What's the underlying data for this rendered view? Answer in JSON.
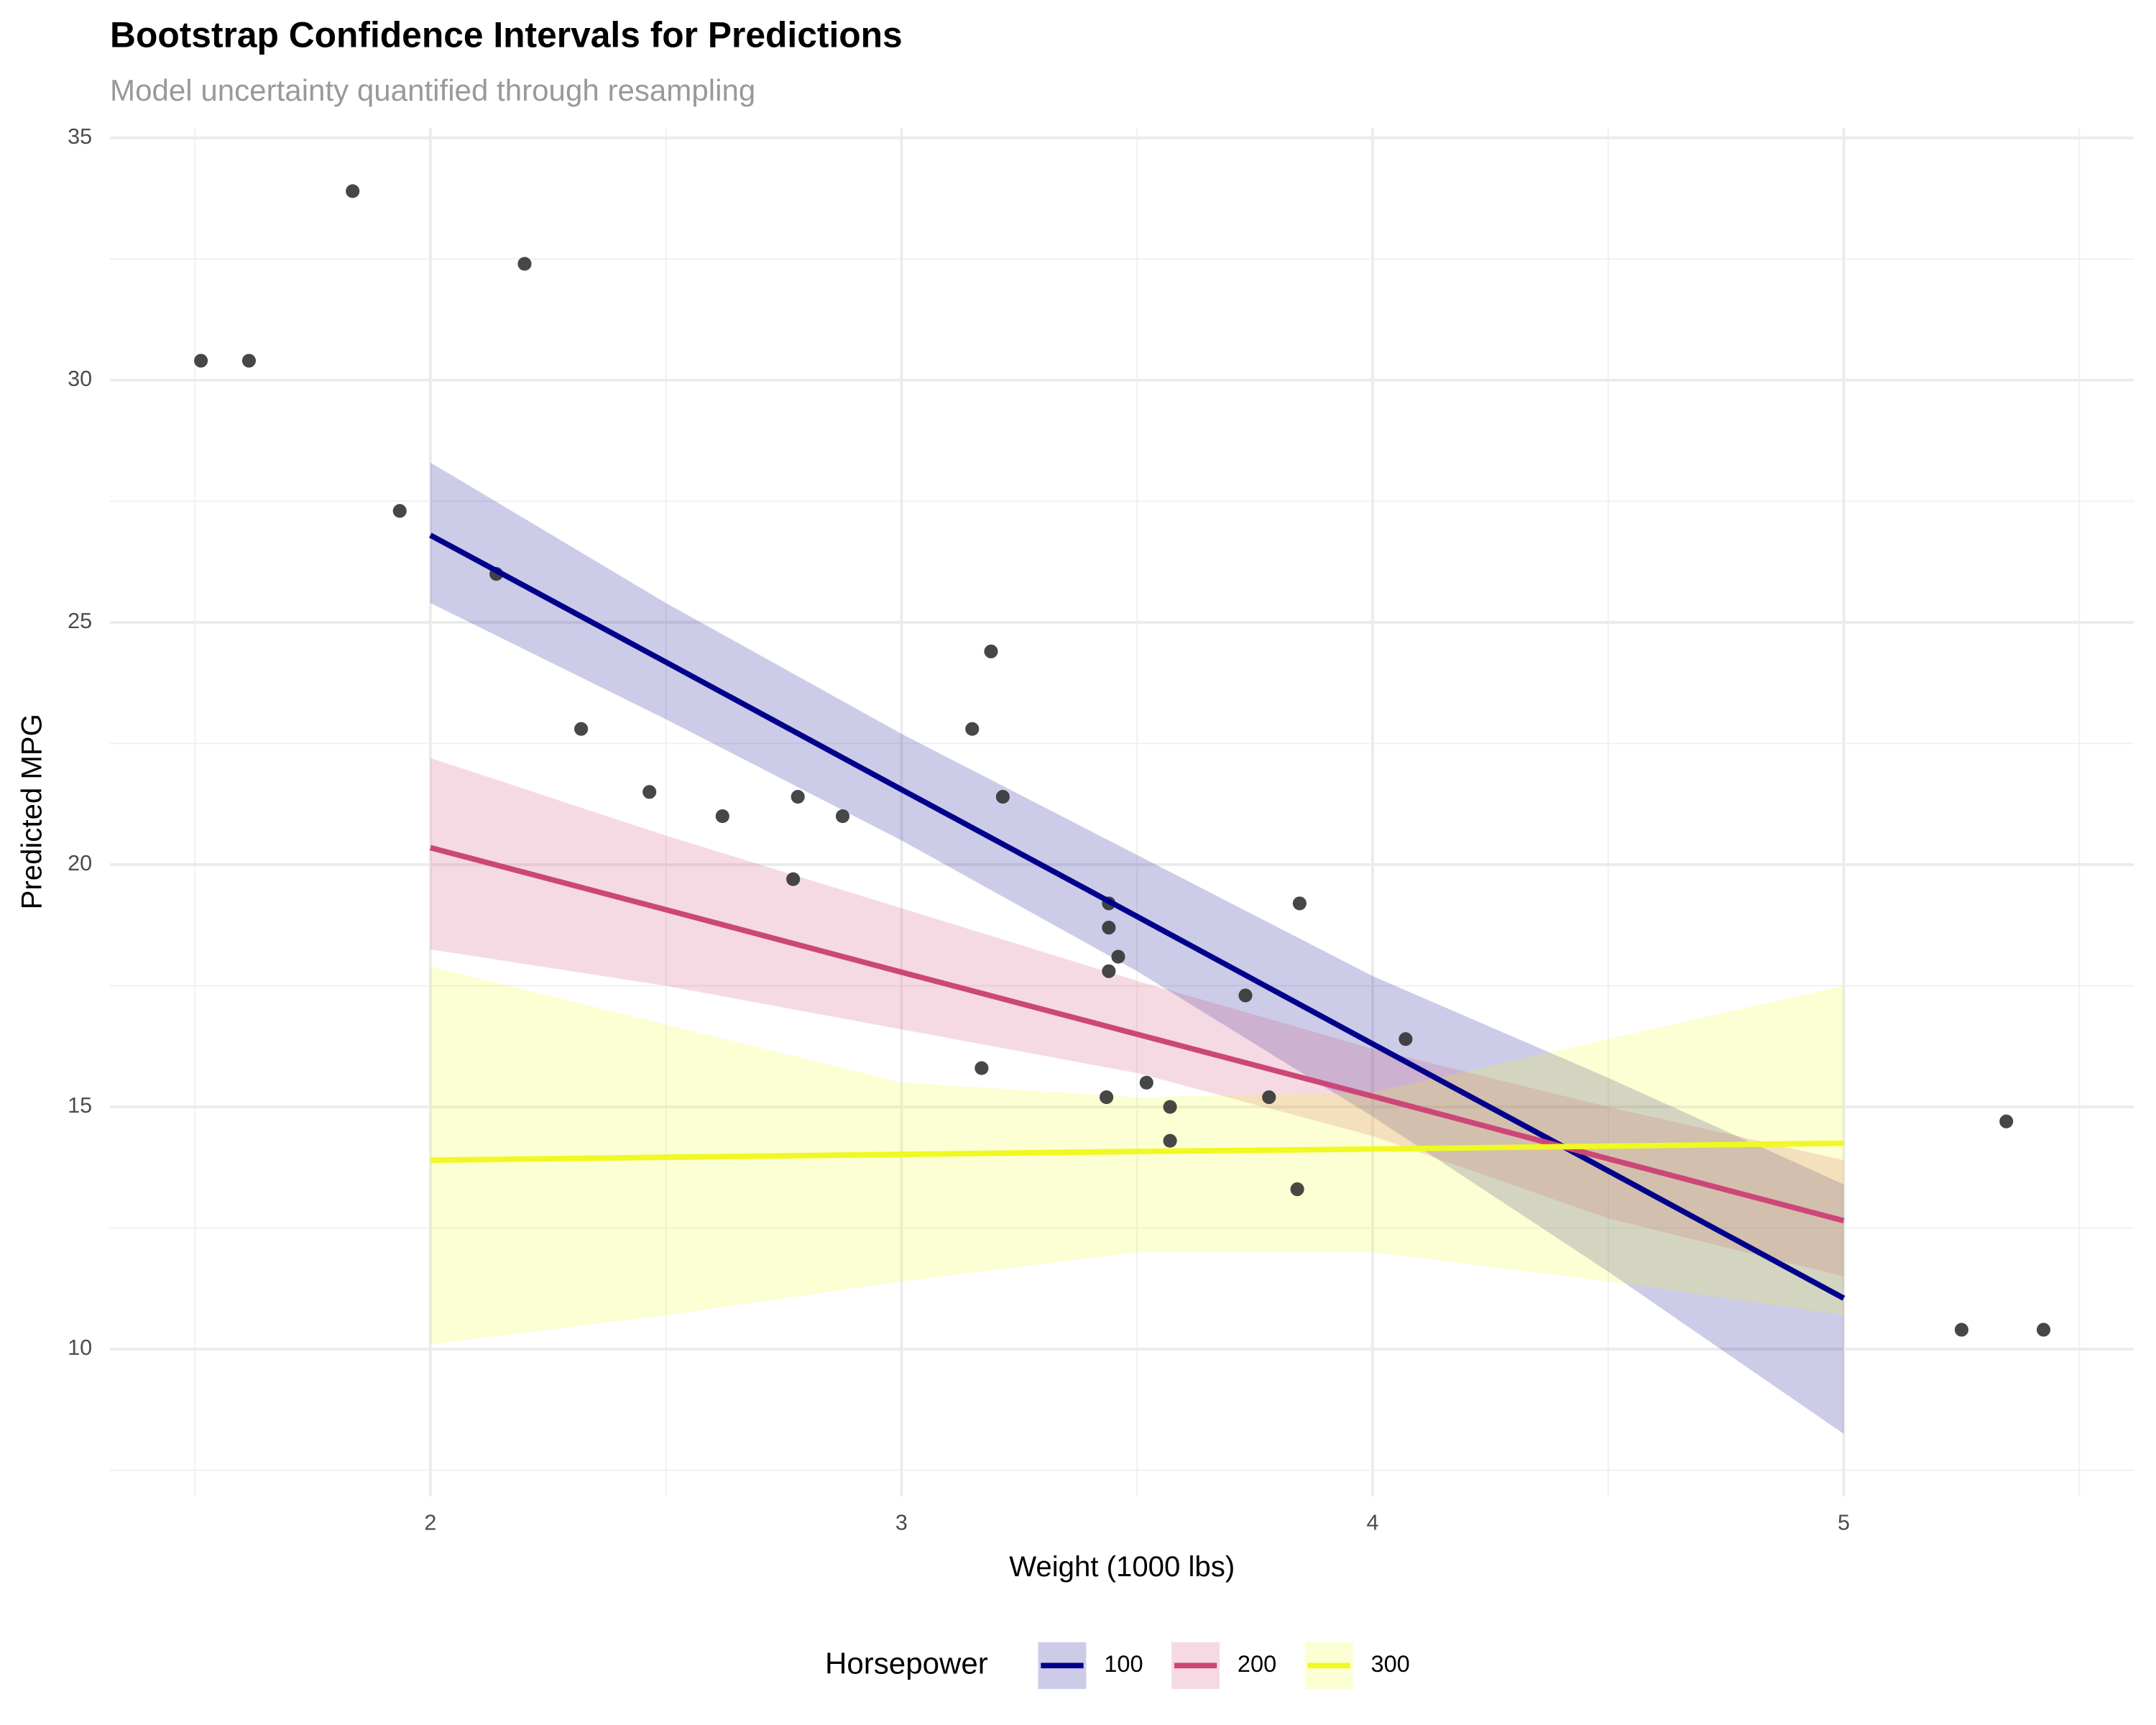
{
  "chart_data": {
    "type": "ribbon-line-scatter",
    "title": "Bootstrap Confidence Intervals for Predictions",
    "subtitle": "Model uncertainty quantified through resampling",
    "x_label": "Weight (1000 lbs)",
    "y_label": "Predicted MPG",
    "legend_title": "Horsepower",
    "legend_position": "bottom",
    "grid": true,
    "xlim": [
      1.32,
      5.616
    ],
    "ylim": [
      6.96,
      35.2
    ],
    "xticks": [
      2,
      3,
      4,
      5
    ],
    "yticks": [
      10,
      15,
      20,
      25,
      30,
      35
    ],
    "minor_xticks": [
      1.5,
      2.5,
      3.5,
      4.5,
      5.5
    ],
    "minor_yticks": [
      7.5,
      12.5,
      17.5,
      22.5,
      27.5,
      32.5
    ],
    "ribbon_opacity": 0.2,
    "x": [
      2,
      2.5,
      3,
      3.5,
      4,
      4.5,
      5
    ],
    "series": [
      {
        "name": "100",
        "color": "#00008B",
        "values": [
          26.8,
          24.18,
          21.55,
          18.93,
          16.3,
          13.68,
          11.05
        ],
        "upper": [
          28.3,
          25.4,
          22.7,
          20.2,
          17.7,
          15.6,
          13.4
        ],
        "lower": [
          25.4,
          23.0,
          20.5,
          17.8,
          14.8,
          11.6,
          8.25
        ]
      },
      {
        "name": "200",
        "color": "#CC4778",
        "values": [
          20.35,
          19.07,
          17.78,
          16.5,
          15.22,
          13.93,
          12.65
        ],
        "upper": [
          22.2,
          20.6,
          19.1,
          17.6,
          16.2,
          15.0,
          13.9
        ],
        "lower": [
          18.25,
          17.5,
          16.6,
          15.7,
          14.4,
          12.7,
          11.5
        ]
      },
      {
        "name": "300",
        "color": "#F0F921",
        "values": [
          13.9,
          13.96,
          14.02,
          14.08,
          14.13,
          14.19,
          14.25
        ],
        "upper": [
          17.9,
          16.7,
          15.5,
          15.2,
          15.3,
          16.4,
          17.5
        ],
        "lower": [
          10.1,
          10.7,
          11.4,
          12.0,
          12.0,
          11.4,
          10.7
        ]
      }
    ],
    "points": {
      "color": "#333333",
      "x": [
        1.513,
        1.615,
        1.835,
        1.935,
        2.14,
        2.2,
        2.32,
        2.465,
        2.62,
        2.77,
        2.78,
        2.875,
        3.15,
        3.17,
        3.19,
        3.215,
        3.435,
        3.44,
        3.44,
        3.44,
        3.46,
        3.52,
        3.57,
        3.57,
        3.73,
        3.78,
        3.84,
        3.845,
        4.07,
        5.25,
        5.345,
        5.424
      ],
      "y": [
        30.4,
        30.4,
        33.9,
        27.3,
        26.0,
        32.4,
        22.8,
        21.5,
        21.0,
        19.7,
        21.4,
        21.0,
        22.8,
        15.8,
        24.4,
        21.4,
        15.2,
        18.7,
        17.8,
        19.2,
        18.1,
        15.5,
        14.3,
        15.0,
        17.3,
        15.2,
        13.3,
        19.2,
        16.4,
        10.4,
        14.7,
        10.4
      ]
    }
  }
}
